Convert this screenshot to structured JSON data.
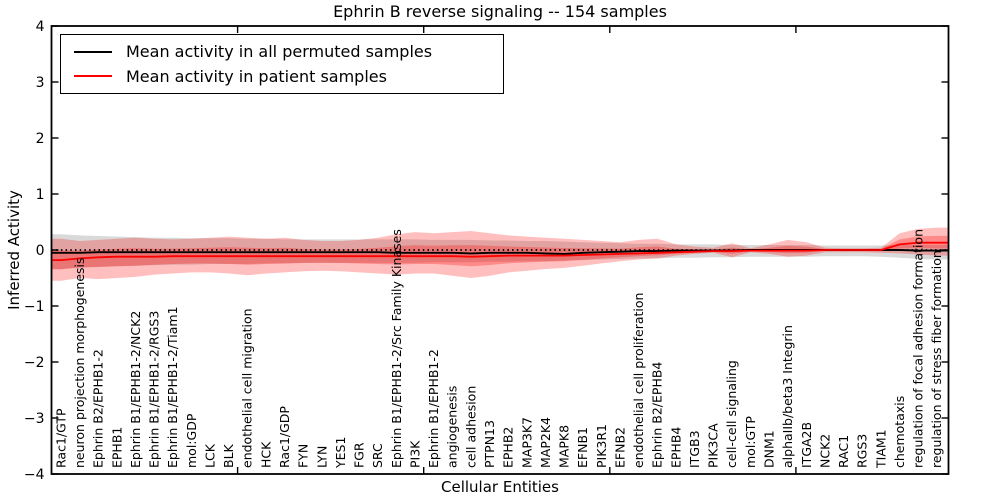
{
  "title": "Ephrin B reverse signaling -- 154 samples",
  "legend": {
    "items": [
      {
        "label": "Mean activity in all permuted samples",
        "color": "#000000"
      },
      {
        "label": "Mean activity in patient samples",
        "color": "#ff0000"
      }
    ]
  },
  "axes": {
    "ylabel": "Inferred Activity",
    "xlabel": "Cellular Entities",
    "ylim": [
      -4,
      4
    ],
    "yticks": [
      4,
      3,
      2,
      1,
      0,
      -1,
      -2,
      -3,
      -4
    ],
    "xticks_unlabeled": [
      10,
      20,
      30,
      40
    ],
    "x_axis_span": 48.2
  },
  "colors": {
    "permuted_line": "#000000",
    "patient_line": "#ff0000",
    "patient_band": "#ff0000",
    "permuted_band": "#aaaaaa",
    "zero_line": "#000000",
    "frame": "#000000"
  },
  "chart_data": {
    "type": "line",
    "title": "Ephrin B reverse signaling -- 154 samples",
    "xlabel": "Cellular Entities",
    "ylabel": "Inferred Activity",
    "ylim": [
      -4,
      4
    ],
    "legend_position": "upper left",
    "zero_line": {
      "y": 0,
      "style": "dotted",
      "color": "#000000"
    },
    "categories": [
      "Rac1/GTP",
      "neuron projection morphogenesis",
      "Ephrin B2/EPHB1-2",
      "EPHB1",
      "Ephrin B1/EPHB1-2/NCK2",
      "Ephrin B1/EPHB1-2/RGS3",
      "Ephrin B1/EPHB1-2/Tiam1",
      "mol:GDP",
      "LCK",
      "BLK",
      "endothelial cell migration",
      "HCK",
      "Rac1/GDP",
      "FYN",
      "LYN",
      "YES1",
      "FGR",
      "SRC",
      "Ephrin B1/EPHB1-2/Src Family Kinases",
      "PI3K",
      "Ephrin B1/EPHB1-2",
      "angiogenesis",
      "cell adhesion",
      "PTPN13",
      "EPHB2",
      "MAP3K7",
      "MAP2K4",
      "MAPK8",
      "EFNB1",
      "PIK3R1",
      "EFNB2",
      "endothelial cell proliferation",
      "Ephrin B2/EPHB4",
      "EPHB4",
      "ITGB3",
      "PIK3CA",
      "cell-cell signaling",
      "mol:GTP",
      "DNM1",
      "alphaIIb/beta3 Integrin",
      "ITGA2B",
      "NCK2",
      "RAC1",
      "RGS3",
      "TIAM1",
      "chemotaxis",
      "regulation of focal adhesion formation",
      "regulation of stress fiber formation"
    ],
    "series": [
      {
        "name": "Mean activity in all permuted samples",
        "color": "#000000",
        "values": [
          -0.05,
          -0.05,
          -0.04,
          -0.04,
          -0.04,
          -0.04,
          -0.04,
          -0.04,
          -0.04,
          -0.04,
          -0.04,
          -0.04,
          -0.04,
          -0.04,
          -0.04,
          -0.04,
          -0.04,
          -0.04,
          -0.05,
          -0.05,
          -0.05,
          -0.05,
          -0.06,
          -0.05,
          -0.05,
          -0.05,
          -0.06,
          -0.07,
          -0.05,
          -0.04,
          -0.03,
          -0.02,
          -0.02,
          -0.01,
          -0.01,
          -0.01,
          -0.01,
          0,
          0,
          0,
          0,
          0,
          0,
          0,
          0,
          0,
          -0.01,
          -0.01
        ]
      },
      {
        "name": "Mean activity in patient samples",
        "color": "#ff0000",
        "values": [
          -0.18,
          -0.15,
          -0.13,
          -0.12,
          -0.12,
          -0.12,
          -0.11,
          -0.11,
          -0.11,
          -0.11,
          -0.11,
          -0.11,
          -0.11,
          -0.11,
          -0.11,
          -0.11,
          -0.11,
          -0.11,
          -0.11,
          -0.11,
          -0.11,
          -0.11,
          -0.12,
          -0.11,
          -0.1,
          -0.1,
          -0.1,
          -0.1,
          -0.09,
          -0.08,
          -0.07,
          -0.06,
          -0.05,
          -0.04,
          -0.03,
          -0.02,
          -0.02,
          -0.01,
          -0.01,
          -0.01,
          -0.01,
          0,
          0,
          0,
          0,
          0.1,
          0.13,
          0.13
        ]
      }
    ],
    "bands": [
      {
        "name": "patient std band",
        "color": "#ff0000",
        "hi": [
          0.2,
          0.16,
          0.18,
          0.2,
          0.22,
          0.2,
          0.19,
          0.2,
          0.22,
          0.24,
          0.22,
          0.2,
          0.22,
          0.18,
          0.16,
          0.16,
          0.18,
          0.22,
          0.28,
          0.32,
          0.3,
          0.32,
          0.34,
          0.3,
          0.26,
          0.24,
          0.22,
          0.2,
          0.18,
          0.16,
          0.14,
          0.18,
          0.2,
          0.1,
          0.06,
          0.04,
          0.12,
          0.03,
          0.1,
          0.18,
          0.14,
          0.04,
          0.03,
          0.03,
          0.04,
          0.3,
          0.38,
          0.4
        ],
        "lo": [
          -0.55,
          -0.5,
          -0.52,
          -0.5,
          -0.48,
          -0.44,
          -0.42,
          -0.4,
          -0.4,
          -0.42,
          -0.45,
          -0.42,
          -0.4,
          -0.38,
          -0.37,
          -0.38,
          -0.4,
          -0.42,
          -0.44,
          -0.42,
          -0.42,
          -0.46,
          -0.5,
          -0.46,
          -0.4,
          -0.37,
          -0.34,
          -0.32,
          -0.28,
          -0.24,
          -0.2,
          -0.17,
          -0.15,
          -0.1,
          -0.07,
          -0.05,
          -0.13,
          -0.04,
          -0.07,
          -0.12,
          -0.1,
          -0.04,
          -0.04,
          -0.04,
          -0.05,
          -0.06,
          -0.08,
          -0.1
        ]
      },
      {
        "name": "permuted std band",
        "color": "#aaaaaa",
        "hi": [
          0.28,
          0.26,
          0.25,
          0.24,
          0.23,
          0.22,
          0.22,
          0.21,
          0.21,
          0.21,
          0.2,
          0.2,
          0.19,
          0.19,
          0.19,
          0.19,
          0.19,
          0.19,
          0.19,
          0.19,
          0.18,
          0.18,
          0.18,
          0.17,
          0.17,
          0.16,
          0.16,
          0.15,
          0.14,
          0.13,
          0.12,
          0.11,
          0.11,
          0.1,
          0.1,
          0.1,
          0.09,
          0.09,
          0.09,
          0.09,
          0.09,
          0.08,
          0.08,
          0.08,
          0.08,
          0.09,
          0.09,
          0.09
        ],
        "lo": [
          -0.34,
          -0.32,
          -0.3,
          -0.29,
          -0.28,
          -0.27,
          -0.26,
          -0.26,
          -0.25,
          -0.25,
          -0.25,
          -0.24,
          -0.24,
          -0.23,
          -0.23,
          -0.23,
          -0.23,
          -0.23,
          -0.23,
          -0.23,
          -0.22,
          -0.22,
          -0.22,
          -0.21,
          -0.21,
          -0.2,
          -0.2,
          -0.19,
          -0.18,
          -0.17,
          -0.16,
          -0.15,
          -0.15,
          -0.14,
          -0.14,
          -0.13,
          -0.13,
          -0.12,
          -0.12,
          -0.12,
          -0.12,
          -0.11,
          -0.11,
          -0.11,
          -0.12,
          -0.14,
          -0.16,
          -0.17
        ]
      }
    ]
  }
}
